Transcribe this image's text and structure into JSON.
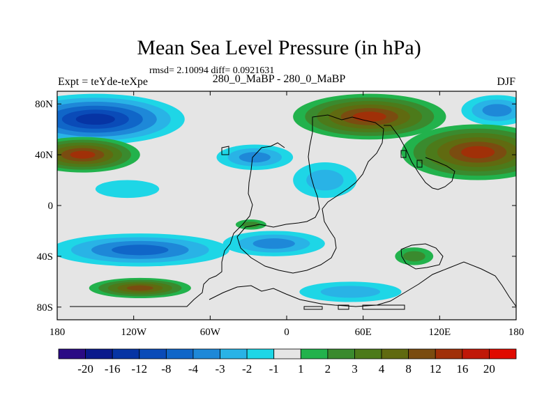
{
  "chart_data": {
    "type": "heatmap",
    "title": "Mean Sea Level Pressure (in hPa)",
    "stats_text": "rmsd= 2.10094 diff= 0.0921631",
    "left_label": "Expt = teYde-teXpe",
    "center_label": "280_0_MaBP - 280_0_MaBP",
    "right_label": "DJF",
    "x_ticks": [
      "180",
      "120W",
      "60W",
      "0",
      "60E",
      "120E",
      "180"
    ],
    "x_tick_values": [
      -180,
      -120,
      -60,
      0,
      60,
      120,
      180
    ],
    "y_ticks": [
      "80N",
      "40N",
      "0",
      "40S",
      "80S"
    ],
    "y_tick_values": [
      80,
      40,
      0,
      -40,
      -80
    ],
    "xlim": [
      -180,
      180
    ],
    "ylim": [
      -90,
      90
    ],
    "colorbar": {
      "labels": [
        "-20",
        "-16",
        "-12",
        "-8",
        "-4",
        "-3",
        "-2",
        "-1",
        "1",
        "2",
        "3",
        "4",
        "8",
        "12",
        "16",
        "20"
      ],
      "colors": [
        "#2a0b84",
        "#0a1a8c",
        "#0634a4",
        "#0a4bb8",
        "#1066c8",
        "#1e88d8",
        "#29b3e6",
        "#1ed6e6",
        "#e5e5e5",
        "#22b24c",
        "#3a8a2e",
        "#4c7a1a",
        "#606a10",
        "#7a4c10",
        "#a03008",
        "#c01808",
        "#e00a00"
      ]
    },
    "anomaly_blobs": [
      {
        "lon": -150,
        "lat": 68,
        "rlon": 70,
        "rlat": 20,
        "level": -12
      },
      {
        "lon": 165,
        "lat": 75,
        "rlon": 28,
        "rlat": 12,
        "level": -3
      },
      {
        "lon": -160,
        "lat": 40,
        "rlon": 45,
        "rlat": 14,
        "level": 12
      },
      {
        "lon": 65,
        "lat": 70,
        "rlon": 60,
        "rlat": 18,
        "level": 12
      },
      {
        "lon": 150,
        "lat": 42,
        "rlon": 60,
        "rlat": 22,
        "level": 12
      },
      {
        "lon": -25,
        "lat": 38,
        "rlon": 30,
        "rlat": 10,
        "level": -3
      },
      {
        "lon": 30,
        "lat": 20,
        "rlon": 25,
        "rlat": 14,
        "level": -2
      },
      {
        "lon": -125,
        "lat": 13,
        "rlon": 25,
        "rlat": 7,
        "level": -1
      },
      {
        "lon": -115,
        "lat": -35,
        "rlon": 70,
        "rlat": 13,
        "level": -4
      },
      {
        "lon": -10,
        "lat": -30,
        "rlon": 40,
        "rlat": 10,
        "level": -3
      },
      {
        "lon": -115,
        "lat": -65,
        "rlon": 40,
        "rlat": 8,
        "level": 8
      },
      {
        "lon": 50,
        "lat": -68,
        "rlon": 40,
        "rlat": 8,
        "level": -2
      },
      {
        "lon": 100,
        "lat": -40,
        "rlon": 15,
        "rlat": 7,
        "level": 2
      },
      {
        "lon": -28,
        "lat": -15,
        "rlon": 12,
        "rlat": 4,
        "level": 2
      }
    ]
  }
}
